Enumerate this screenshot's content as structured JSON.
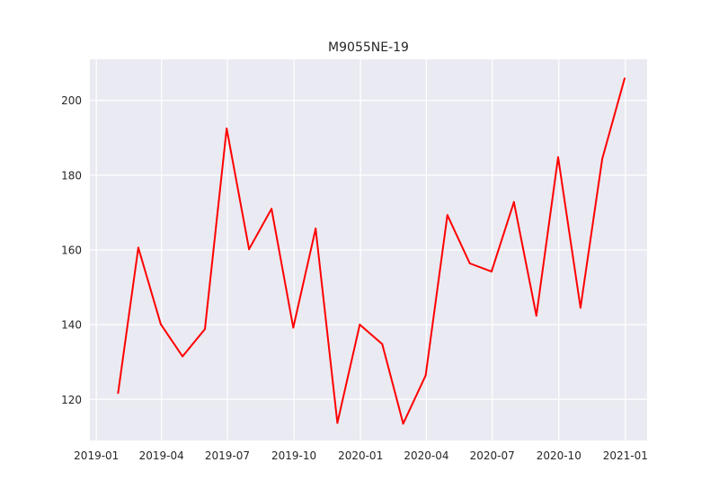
{
  "chart_data": {
    "type": "line",
    "title": "M9055NE-19",
    "xlabel": "",
    "ylabel": "",
    "grid": true,
    "background": "#eaeaf2",
    "line_color": "#ff0000",
    "x_tick_labels": [
      "2019-01",
      "2019-04",
      "2019-07",
      "2019-10",
      "2020-01",
      "2020-04",
      "2020-07",
      "2020-10",
      "2021-01"
    ],
    "y_tick_labels": [
      "120",
      "140",
      "160",
      "180",
      "200"
    ],
    "x_ticks": [
      "2019-01-01",
      "2019-04-01",
      "2019-07-01",
      "2019-10-01",
      "2020-01-01",
      "2020-04-01",
      "2020-07-01",
      "2020-10-01",
      "2021-01-01"
    ],
    "y_ticks": [
      120,
      140,
      160,
      180,
      200
    ],
    "xlim": [
      "2018-12-23",
      "2021-01-31"
    ],
    "ylim": [
      109,
      211
    ],
    "series": [
      {
        "x": [
          "2019-01-31",
          "2019-02-28",
          "2019-03-31",
          "2019-04-30",
          "2019-05-31",
          "2019-06-30",
          "2019-07-31",
          "2019-08-31",
          "2019-09-30",
          "2019-10-31",
          "2019-11-30",
          "2019-12-31",
          "2020-01-31",
          "2020-02-29",
          "2020-03-31",
          "2020-04-30",
          "2020-05-31",
          "2020-06-30",
          "2020-07-31",
          "2020-08-31",
          "2020-09-30",
          "2020-10-31",
          "2020-11-30",
          "2020-12-31"
        ],
        "values": [
          121.7,
          160.6,
          140.1,
          131.5,
          138.8,
          192.5,
          160.2,
          171.0,
          139.2,
          165.7,
          113.7,
          140.0,
          134.8,
          113.5,
          126.4,
          169.3,
          156.4,
          154.2,
          172.8,
          142.4,
          184.8,
          144.5,
          184.4,
          205.9
        ]
      }
    ]
  }
}
